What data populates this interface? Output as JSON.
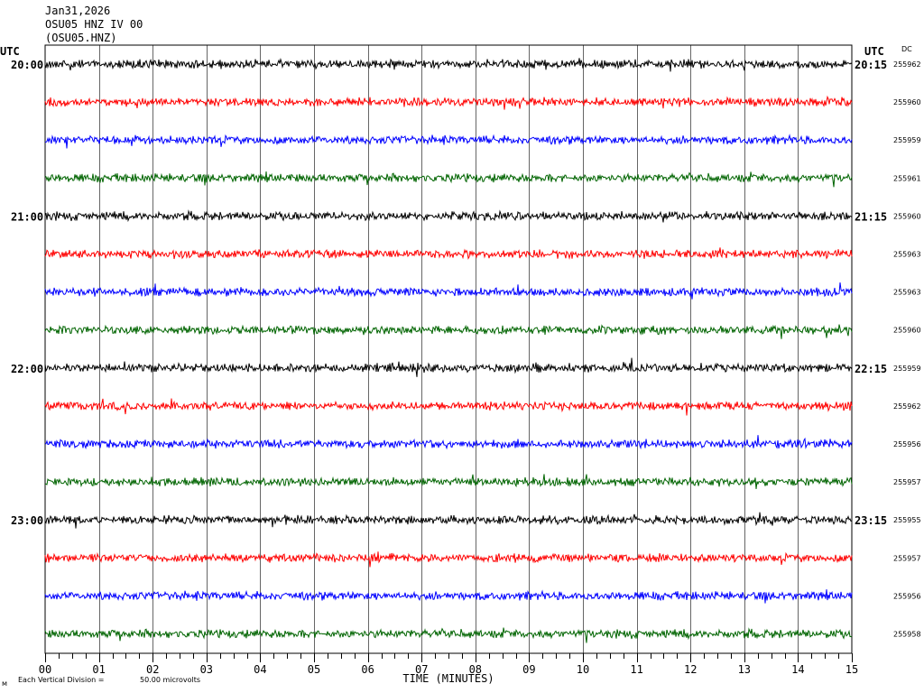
{
  "header": {
    "date": "Jan31,2026",
    "station": "OSU05 HNZ IV 00",
    "channel": "(OSU05.HNZ)"
  },
  "labels": {
    "utc_left": "UTC",
    "utc_right": "UTC",
    "dc": "DC"
  },
  "footer": {
    "mark": "ᴍ",
    "division_label": "Each Vertical Division =",
    "division_value": "50.00 microvolts"
  },
  "chart_data": {
    "type": "line",
    "title": "",
    "xlabel": "TIME (MINUTES)",
    "ylabel": "",
    "xlim": [
      0,
      15
    ],
    "x_ticks": [
      "00",
      "01",
      "02",
      "03",
      "04",
      "05",
      "06",
      "07",
      "08",
      "09",
      "10",
      "11",
      "12",
      "13",
      "14",
      "15"
    ],
    "grid": true,
    "colors": {
      "black": "#000000",
      "red": "#ff0000",
      "blue": "#0000ff",
      "green": "#006400"
    },
    "hour_labels_left": [
      "20:00",
      "21:00",
      "22:00",
      "23:00"
    ],
    "hour_labels_right": [
      "20:15",
      "21:15",
      "22:15",
      "23:15"
    ],
    "traces": [
      {
        "color": "black",
        "dc": "255962"
      },
      {
        "color": "red",
        "dc": "255960"
      },
      {
        "color": "blue",
        "dc": "255959"
      },
      {
        "color": "green",
        "dc": "255961"
      },
      {
        "color": "black",
        "dc": "255960"
      },
      {
        "color": "red",
        "dc": "255963"
      },
      {
        "color": "blue",
        "dc": "255963"
      },
      {
        "color": "green",
        "dc": "255960"
      },
      {
        "color": "black",
        "dc": "255959"
      },
      {
        "color": "red",
        "dc": "255962"
      },
      {
        "color": "blue",
        "dc": "255956"
      },
      {
        "color": "green",
        "dc": "255957"
      },
      {
        "color": "black",
        "dc": "255955"
      },
      {
        "color": "red",
        "dc": "255957"
      },
      {
        "color": "blue",
        "dc": "255956"
      },
      {
        "color": "green",
        "dc": "255958"
      }
    ]
  }
}
